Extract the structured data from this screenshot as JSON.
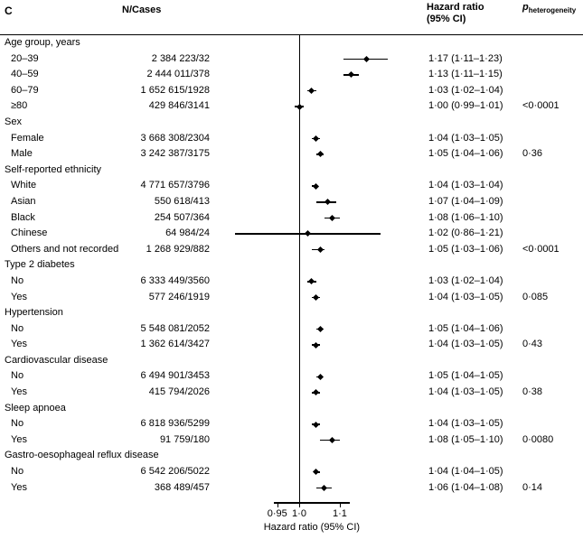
{
  "header": {
    "panel_label": "C",
    "n_cases_label": "N/Cases",
    "hr_label_line1": "Hazard ratio",
    "hr_label_line2": "(95% CI)",
    "p_label": "p",
    "p_label_sub": "heterogeneity"
  },
  "axis": {
    "xlabel": "Hazard ratio (95% CI)",
    "scale": "log",
    "reference": 1.0,
    "xlim": [
      0.94,
      1.13
    ],
    "ticks": [
      {
        "value": 0.95,
        "label": "0·95"
      },
      {
        "value": 1.0,
        "label": "1·0"
      },
      {
        "value": 1.1,
        "label": "1·1"
      }
    ]
  },
  "colors": {
    "marker": "#000000",
    "line": "#000000",
    "text": "#000000",
    "background": "#ffffff"
  },
  "chart_data": {
    "type": "forest",
    "title": "",
    "xlabel": "Hazard ratio (95% CI)",
    "x_scale": "log",
    "x_ticks": [
      0.95,
      1.0,
      1.1
    ],
    "reference_line": 1.0,
    "rows": [
      {
        "type": "group",
        "label": "Age group, years"
      },
      {
        "type": "item",
        "label": "20–39",
        "n": "2 384 223/32",
        "hr": 1.17,
        "lo": 1.11,
        "hi": 1.23,
        "hr_text": "1·17 (1·11–1·23)",
        "p": ""
      },
      {
        "type": "item",
        "label": "40–59",
        "n": "2 444 011/378",
        "hr": 1.13,
        "lo": 1.11,
        "hi": 1.15,
        "hr_text": "1·13 (1·11–1·15)",
        "p": ""
      },
      {
        "type": "item",
        "label": "60–79",
        "n": "1 652 615/1928",
        "hr": 1.03,
        "lo": 1.02,
        "hi": 1.04,
        "hr_text": "1·03 (1·02–1·04)",
        "p": ""
      },
      {
        "type": "item",
        "label": "≥80",
        "n": "429 846/3141",
        "hr": 1.0,
        "lo": 0.99,
        "hi": 1.01,
        "hr_text": "1·00 (0·99–1·01)",
        "p": "<0·0001"
      },
      {
        "type": "group",
        "label": "Sex"
      },
      {
        "type": "item",
        "label": "Female",
        "n": "3 668 308/2304",
        "hr": 1.04,
        "lo": 1.03,
        "hi": 1.05,
        "hr_text": "1·04 (1·03–1·05)",
        "p": ""
      },
      {
        "type": "item",
        "label": "Male",
        "n": "3 242 387/3175",
        "hr": 1.05,
        "lo": 1.04,
        "hi": 1.06,
        "hr_text": "1·05 (1·04–1·06)",
        "p": "0·36"
      },
      {
        "type": "group",
        "label": "Self-reported ethnicity"
      },
      {
        "type": "item",
        "label": "White",
        "n": "4 771 657/3796",
        "hr": 1.04,
        "lo": 1.03,
        "hi": 1.04,
        "hr_text": "1·04 (1·03–1·04)",
        "p": ""
      },
      {
        "type": "item",
        "label": "Asian",
        "n": "550 618/413",
        "hr": 1.07,
        "lo": 1.04,
        "hi": 1.09,
        "hr_text": "1·07 (1·04–1·09)",
        "p": ""
      },
      {
        "type": "item",
        "label": "Black",
        "n": "254 507/364",
        "hr": 1.08,
        "lo": 1.06,
        "hi": 1.1,
        "hr_text": "1·08 (1·06–1·10)",
        "p": ""
      },
      {
        "type": "item",
        "label": "Chinese",
        "n": "64 984/24",
        "hr": 1.02,
        "lo": 0.86,
        "hi": 1.21,
        "hr_text": "1·02 (0·86–1·21)",
        "p": ""
      },
      {
        "type": "item",
        "label": "Others and not recorded",
        "n": "1 268 929/882",
        "hr": 1.05,
        "lo": 1.03,
        "hi": 1.06,
        "hr_text": "1·05 (1·03–1·06)",
        "p": "<0·0001"
      },
      {
        "type": "group",
        "label": "Type 2 diabetes"
      },
      {
        "type": "item",
        "label": "No",
        "n": "6 333 449/3560",
        "hr": 1.03,
        "lo": 1.02,
        "hi": 1.04,
        "hr_text": "1·03 (1·02–1·04)",
        "p": ""
      },
      {
        "type": "item",
        "label": "Yes",
        "n": "577 246/1919",
        "hr": 1.04,
        "lo": 1.03,
        "hi": 1.05,
        "hr_text": "1·04 (1·03–1·05)",
        "p": "0·085"
      },
      {
        "type": "group",
        "label": "Hypertension"
      },
      {
        "type": "item",
        "label": "No",
        "n": "5 548 081/2052",
        "hr": 1.05,
        "lo": 1.04,
        "hi": 1.06,
        "hr_text": "1·05 (1·04–1·06)",
        "p": ""
      },
      {
        "type": "item",
        "label": "Yes",
        "n": "1 362 614/3427",
        "hr": 1.04,
        "lo": 1.03,
        "hi": 1.05,
        "hr_text": "1·04 (1·03–1·05)",
        "p": "0·43"
      },
      {
        "type": "group",
        "label": "Cardiovascular disease"
      },
      {
        "type": "item",
        "label": "No",
        "n": "6 494 901/3453",
        "hr": 1.05,
        "lo": 1.04,
        "hi": 1.05,
        "hr_text": "1·05 (1·04–1·05)",
        "p": ""
      },
      {
        "type": "item",
        "label": "Yes",
        "n": "415 794/2026",
        "hr": 1.04,
        "lo": 1.03,
        "hi": 1.05,
        "hr_text": "1·04 (1·03–1·05)",
        "p": "0·38"
      },
      {
        "type": "group",
        "label": "Sleep apnoea"
      },
      {
        "type": "item",
        "label": "No",
        "n": "6 818 936/5299",
        "hr": 1.04,
        "lo": 1.03,
        "hi": 1.05,
        "hr_text": "1·04 (1·03–1·05)",
        "p": ""
      },
      {
        "type": "item",
        "label": "Yes",
        "n": "91 759/180",
        "hr": 1.08,
        "lo": 1.05,
        "hi": 1.1,
        "hr_text": "1·08 (1·05–1·10)",
        "p": "0·0080"
      },
      {
        "type": "group",
        "label": "Gastro-oesophageal reflux disease"
      },
      {
        "type": "item",
        "label": "No",
        "n": "6 542 206/5022",
        "hr": 1.04,
        "lo": 1.04,
        "hi": 1.05,
        "hr_text": "1·04 (1·04–1·05)",
        "p": ""
      },
      {
        "type": "item",
        "label": "Yes",
        "n": "368 489/457",
        "hr": 1.06,
        "lo": 1.04,
        "hi": 1.08,
        "hr_text": "1·06 (1·04–1·08)",
        "p": "0·14"
      }
    ]
  }
}
